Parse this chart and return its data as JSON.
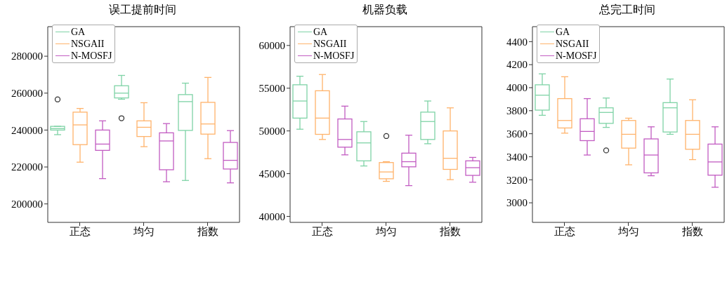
{
  "chart_data": [
    {
      "type": "box",
      "title": "误工提前时间",
      "categories": [
        "正态",
        "均匀",
        "指数"
      ],
      "legend": "top left",
      "ylim": [
        190000,
        296000
      ],
      "yticks": [
        200000,
        220000,
        240000,
        260000,
        280000
      ],
      "series": [
        {
          "name": "GA",
          "color": "#7fd3a6",
          "boxes": [
            {
              "low": 237500,
              "q1": 240000,
              "median": 240800,
              "q3": 242000,
              "high": 242000,
              "outliers": [
                256600
              ]
            },
            {
              "low": 256700,
              "q1": 257400,
              "median": 260000,
              "q3": 264000,
              "high": 269600,
              "outliers": [
                246400
              ]
            },
            {
              "low": 212700,
              "q1": 239800,
              "median": 255400,
              "q3": 259200,
              "high": 265400
            }
          ]
        },
        {
          "name": "NSGAII",
          "color": "#ffb36b",
          "boxes": [
            {
              "low": 222600,
              "q1": 232100,
              "median": 242800,
              "q3": 249700,
              "high": 251700
            },
            {
              "low": 231000,
              "q1": 236500,
              "median": 241500,
              "q3": 245000,
              "high": 254800
            },
            {
              "low": 224500,
              "q1": 237800,
              "median": 243300,
              "q3": 255000,
              "high": 268500
            }
          ]
        },
        {
          "name": "N-MOSFJ",
          "color": "#c25cc2",
          "boxes": [
            {
              "low": 213700,
              "q1": 229000,
              "median": 232400,
              "q3": 240000,
              "high": 245000
            },
            {
              "low": 212000,
              "q1": 218500,
              "median": 234100,
              "q3": 238500,
              "high": 243500
            },
            {
              "low": 211400,
              "q1": 218900,
              "median": 223600,
              "q3": 233300,
              "high": 239700
            }
          ]
        }
      ]
    },
    {
      "type": "box",
      "title": "机器负载",
      "categories": [
        "正态",
        "均匀",
        "指数"
      ],
      "legend": "top left",
      "ylim": [
        39300,
        62200
      ],
      "yticks": [
        40000,
        45000,
        50000,
        55000,
        60000
      ],
      "series": [
        {
          "name": "GA",
          "color": "#7fd3a6",
          "boxes": [
            {
              "low": 50200,
              "q1": 51500,
              "median": 53500,
              "q3": 55400,
              "high": 56400
            },
            {
              "low": 45900,
              "q1": 46500,
              "median": 48600,
              "q3": 49900,
              "high": 51100
            },
            {
              "low": 48500,
              "q1": 49000,
              "median": 51100,
              "q3": 52200,
              "high": 53500
            }
          ]
        },
        {
          "name": "NSGAII",
          "color": "#ffb36b",
          "boxes": [
            {
              "low": 49000,
              "q1": 49600,
              "median": 51500,
              "q3": 54700,
              "high": 56600
            },
            {
              "low": 44100,
              "q1": 44400,
              "median": 45200,
              "q3": 46300,
              "high": 46400,
              "outliers": [
                49400
              ]
            },
            {
              "low": 44300,
              "q1": 45500,
              "median": 46800,
              "q3": 50000,
              "high": 52700
            }
          ]
        },
        {
          "name": "N-MOSFJ",
          "color": "#c25cc2",
          "boxes": [
            {
              "low": 47200,
              "q1": 48100,
              "median": 49000,
              "q3": 51400,
              "high": 52900
            },
            {
              "low": 43600,
              "q1": 45800,
              "median": 46400,
              "q3": 47400,
              "high": 49500
            },
            {
              "low": 44000,
              "q1": 44800,
              "median": 45700,
              "q3": 46500,
              "high": 46900
            }
          ]
        }
      ]
    },
    {
      "type": "box",
      "title": "总完工时间",
      "categories": [
        "正态",
        "均匀",
        "指数"
      ],
      "legend": "top left",
      "ylim": [
        2830,
        4530
      ],
      "yticks": [
        3000,
        3200,
        3400,
        3600,
        3800,
        4000,
        4200,
        4400
      ],
      "series": [
        {
          "name": "GA",
          "color": "#7fd3a6",
          "boxes": [
            {
              "low": 3760,
              "q1": 3805,
              "median": 3935,
              "q3": 4025,
              "high": 4120
            },
            {
              "low": 3655,
              "q1": 3690,
              "median": 3785,
              "q3": 3825,
              "high": 3910,
              "outliers": [
                3455
              ]
            },
            {
              "low": 3595,
              "q1": 3615,
              "median": 3825,
              "q3": 3870,
              "high": 4075
            }
          ]
        },
        {
          "name": "NSGAII",
          "color": "#ffb36b",
          "boxes": [
            {
              "low": 3605,
              "q1": 3650,
              "median": 3715,
              "q3": 3905,
              "high": 4095
            },
            {
              "low": 3330,
              "q1": 3475,
              "median": 3595,
              "q3": 3715,
              "high": 3735
            },
            {
              "low": 3375,
              "q1": 3465,
              "median": 3595,
              "q3": 3715,
              "high": 3895
            }
          ]
        },
        {
          "name": "N-MOSFJ",
          "color": "#c25cc2",
          "boxes": [
            {
              "low": 3415,
              "q1": 3540,
              "median": 3620,
              "q3": 3730,
              "high": 3905
            },
            {
              "low": 3235,
              "q1": 3260,
              "median": 3415,
              "q3": 3555,
              "high": 3660
            },
            {
              "low": 3135,
              "q1": 3240,
              "median": 3355,
              "q3": 3510,
              "high": 3660
            }
          ]
        }
      ]
    }
  ]
}
